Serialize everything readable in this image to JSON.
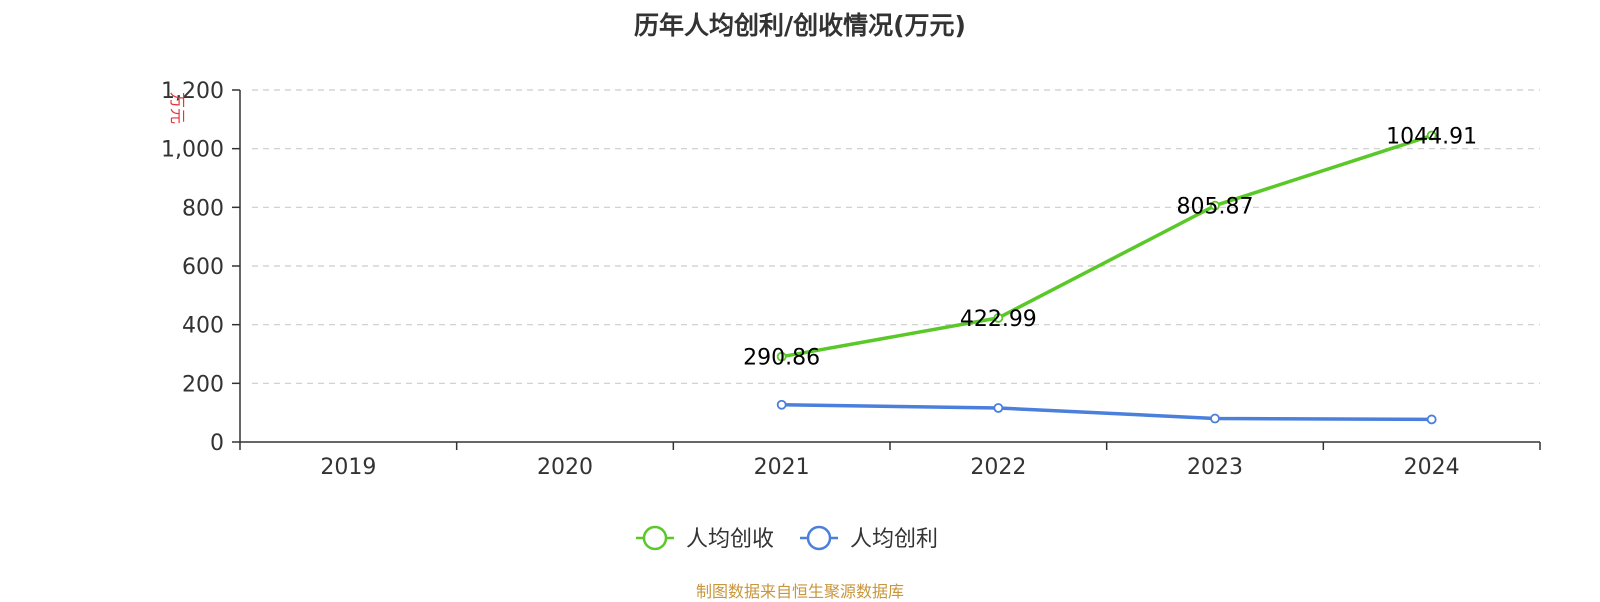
{
  "chart_data": {
    "type": "line",
    "title": "历年人均创利/创收情况(万元)",
    "ylabel": "万元",
    "categories": [
      "2019",
      "2020",
      "2021",
      "2022",
      "2023",
      "2024"
    ],
    "ylim": [
      0,
      1200
    ],
    "yticks": [
      0,
      200,
      400,
      600,
      800,
      1000,
      1200
    ],
    "ytick_labels": [
      "0",
      "200",
      "400",
      "600",
      "800",
      "1,000",
      "1,200"
    ],
    "grid": true,
    "legend_position": "bottom-center",
    "series": [
      {
        "name": "人均创收",
        "color": "#5ac828",
        "values": [
          null,
          null,
          290.86,
          422.99,
          805.87,
          1044.91
        ],
        "labels": [
          "",
          "",
          "290.86",
          "422.99",
          "805.87",
          "1044.91"
        ]
      },
      {
        "name": "人均创利",
        "color": "#4a7fdc",
        "values": [
          null,
          null,
          127,
          116,
          80,
          77
        ],
        "labels": [
          "",
          "",
          "",
          "",
          "",
          ""
        ]
      }
    ]
  },
  "source": "制图数据来自恒生聚源数据库",
  "colors": {
    "axis": "#333333",
    "grid": "#cccccc",
    "unit": "#e8333a",
    "source": "#c8963c"
  }
}
